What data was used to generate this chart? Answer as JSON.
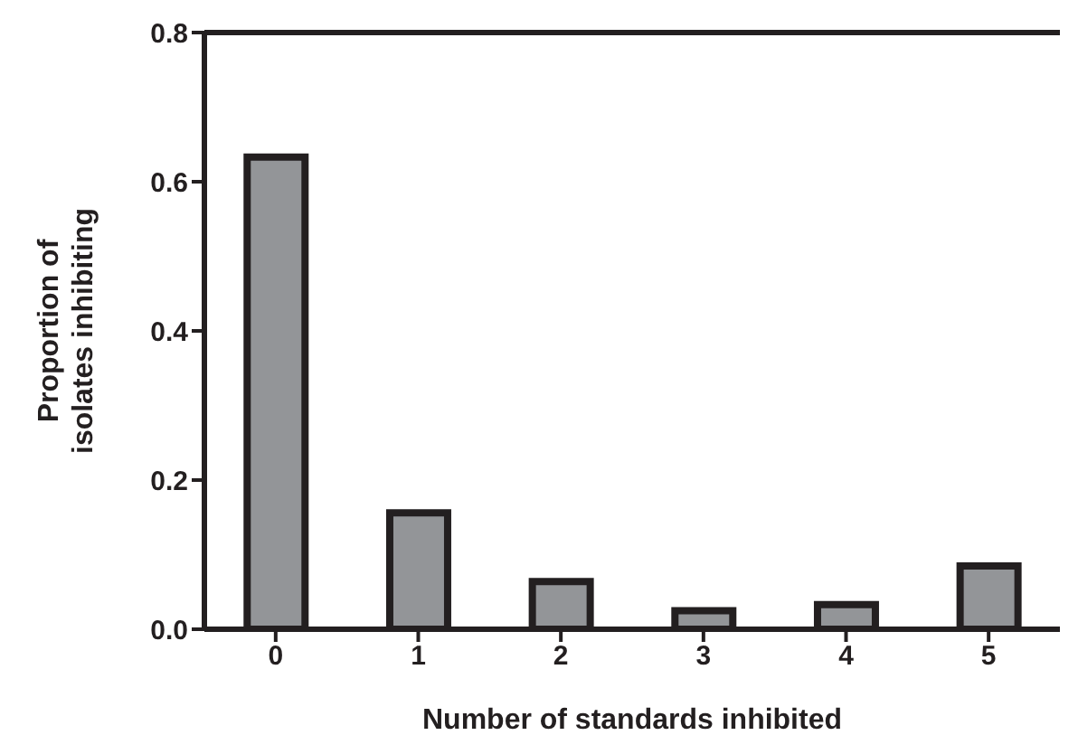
{
  "chart_data": {
    "type": "bar",
    "xlabel": "Number of standards inhibited",
    "ylabel": "Proportion of\nisolates inhibiting",
    "categories": [
      "0",
      "1",
      "2",
      "3",
      "4",
      "5"
    ],
    "values": [
      0.633,
      0.156,
      0.064,
      0.025,
      0.033,
      0.085
    ],
    "color": "#939598",
    "ylim": [
      0,
      0.8
    ],
    "yticks": [
      {
        "value": 0,
        "label": "0.0"
      },
      {
        "value": 0.2,
        "label": "0.2"
      },
      {
        "value": 0.4,
        "label": "0.4"
      },
      {
        "value": 0.6,
        "label": "0.6"
      },
      {
        "value": 0.8,
        "label": "0.8"
      }
    ],
    "grid": false,
    "legend": false
  }
}
